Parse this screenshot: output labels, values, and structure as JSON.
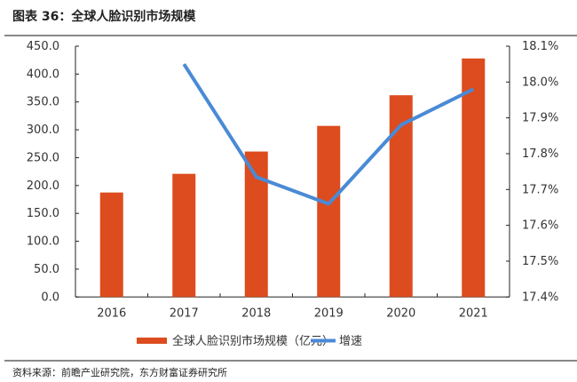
{
  "title": "图表 36：全球人脸识别市场规模",
  "source": "资料来源：前瞻产业研究院，东方财富证券研究所",
  "chart_data": {
    "type": "bar+line",
    "categories": [
      "2016",
      "2017",
      "2018",
      "2019",
      "2020",
      "2021"
    ],
    "series": [
      {
        "name": "全球人脸识别市场规模（亿元）",
        "type": "bar",
        "axis": "left",
        "color": "#DC4C1E",
        "values": [
          187.5,
          221,
          261,
          307,
          362,
          428
        ]
      },
      {
        "name": "增速",
        "type": "line",
        "axis": "right",
        "color": "#4A8AD6",
        "values": [
          null,
          18.05,
          17.735,
          17.66,
          17.88,
          17.98
        ]
      }
    ],
    "left_axis": {
      "min": 0,
      "max": 450,
      "step": 50,
      "ticks": [
        "0.0",
        "50.0",
        "100.0",
        "150.0",
        "200.0",
        "250.0",
        "300.0",
        "350.0",
        "400.0",
        "450.0"
      ]
    },
    "right_axis": {
      "min": 17.4,
      "max": 18.1,
      "step": 0.1,
      "ticks": [
        "17.4%",
        "17.5%",
        "17.6%",
        "17.7%",
        "17.8%",
        "17.9%",
        "18.0%",
        "18.1%"
      ]
    },
    "grid": false,
    "legend_position": "bottom"
  }
}
